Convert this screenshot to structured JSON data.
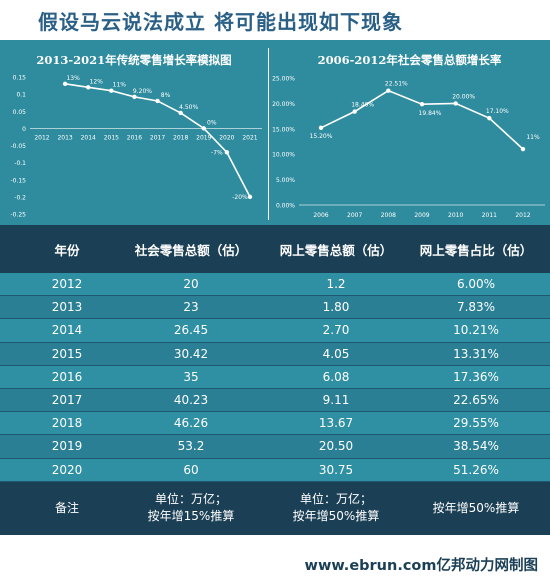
{
  "headline": "假设马云说法成立  将可能出现如下现象",
  "chart_data": [
    {
      "type": "line",
      "title": "2013-2021年传统零售增长率模拟图",
      "x": [
        "2012",
        "2013",
        "2014",
        "2015",
        "2016",
        "2017",
        "2018",
        "2019",
        "2020",
        "2021"
      ],
      "series": [
        {
          "values": [
            null,
            0.13,
            0.12,
            0.11,
            0.092,
            0.08,
            0.045,
            0.0,
            -0.07,
            -0.2
          ],
          "labels": [
            "",
            "13%",
            "12%",
            "11%",
            "9.20%",
            "8%",
            "4.50%",
            "0%",
            "-7%",
            "-20%"
          ]
        }
      ],
      "yticks": [
        "0.15",
        "0.1",
        "0.05",
        "0",
        "-0.05",
        "-0.1",
        "-0.15",
        "-0.2",
        "-0.25"
      ],
      "ylim": [
        -0.25,
        0.15
      ]
    },
    {
      "type": "line",
      "title": "2006-2012年社会零售总额增长率",
      "x": [
        "2006",
        "2007",
        "2008",
        "2009",
        "2010",
        "2011",
        "2012"
      ],
      "series": [
        {
          "values": [
            15.2,
            18.4,
            22.51,
            19.84,
            20.0,
            17.1,
            11.0
          ],
          "labels": [
            "15.20%",
            "18.40%",
            "22.51%",
            "19.84%",
            "20.00%",
            "17.10%",
            "11%"
          ]
        }
      ],
      "yticks": [
        "25.00%",
        "20.00%",
        "15.00%",
        "10.00%",
        "5.00%",
        "0.00%"
      ],
      "ylim": [
        0,
        25
      ]
    }
  ],
  "table": {
    "headers": [
      "年份",
      "社会零售总额（估）",
      "网上零售总额（估）",
      "网上零售占比（估）"
    ],
    "rows": [
      [
        "2012",
        "20",
        "1.2",
        "6.00%"
      ],
      [
        "2013",
        "23",
        "1.80",
        "7.83%"
      ],
      [
        "2014",
        "26.45",
        "2.70",
        "10.21%"
      ],
      [
        "2015",
        "30.42",
        "4.05",
        "13.31%"
      ],
      [
        "2016",
        "35",
        "6.08",
        "17.36%"
      ],
      [
        "2017",
        "40.23",
        "9.11",
        "22.65%"
      ],
      [
        "2018",
        "46.26",
        "13.67",
        "29.55%"
      ],
      [
        "2019",
        "53.2",
        "20.50",
        "38.54%"
      ],
      [
        "2020",
        "60",
        "30.75",
        "51.26%"
      ]
    ],
    "notes": {
      "label": "备注",
      "col1_line1": "单位：万亿；",
      "col1_line2": "按年增15%推算",
      "col2_line1": "单位：万亿；",
      "col2_line2": "按年增50%推算",
      "col3": "按年增50%推算"
    }
  },
  "footer": "www.ebrun.com亿邦动力网制图",
  "colors": {
    "headline": "#2a5f86",
    "chart_bg": "#2f8c9e",
    "table_header_bg": "#1b3f55",
    "row_odd": "#2f8fa3",
    "row_even": "#2a7f94"
  }
}
